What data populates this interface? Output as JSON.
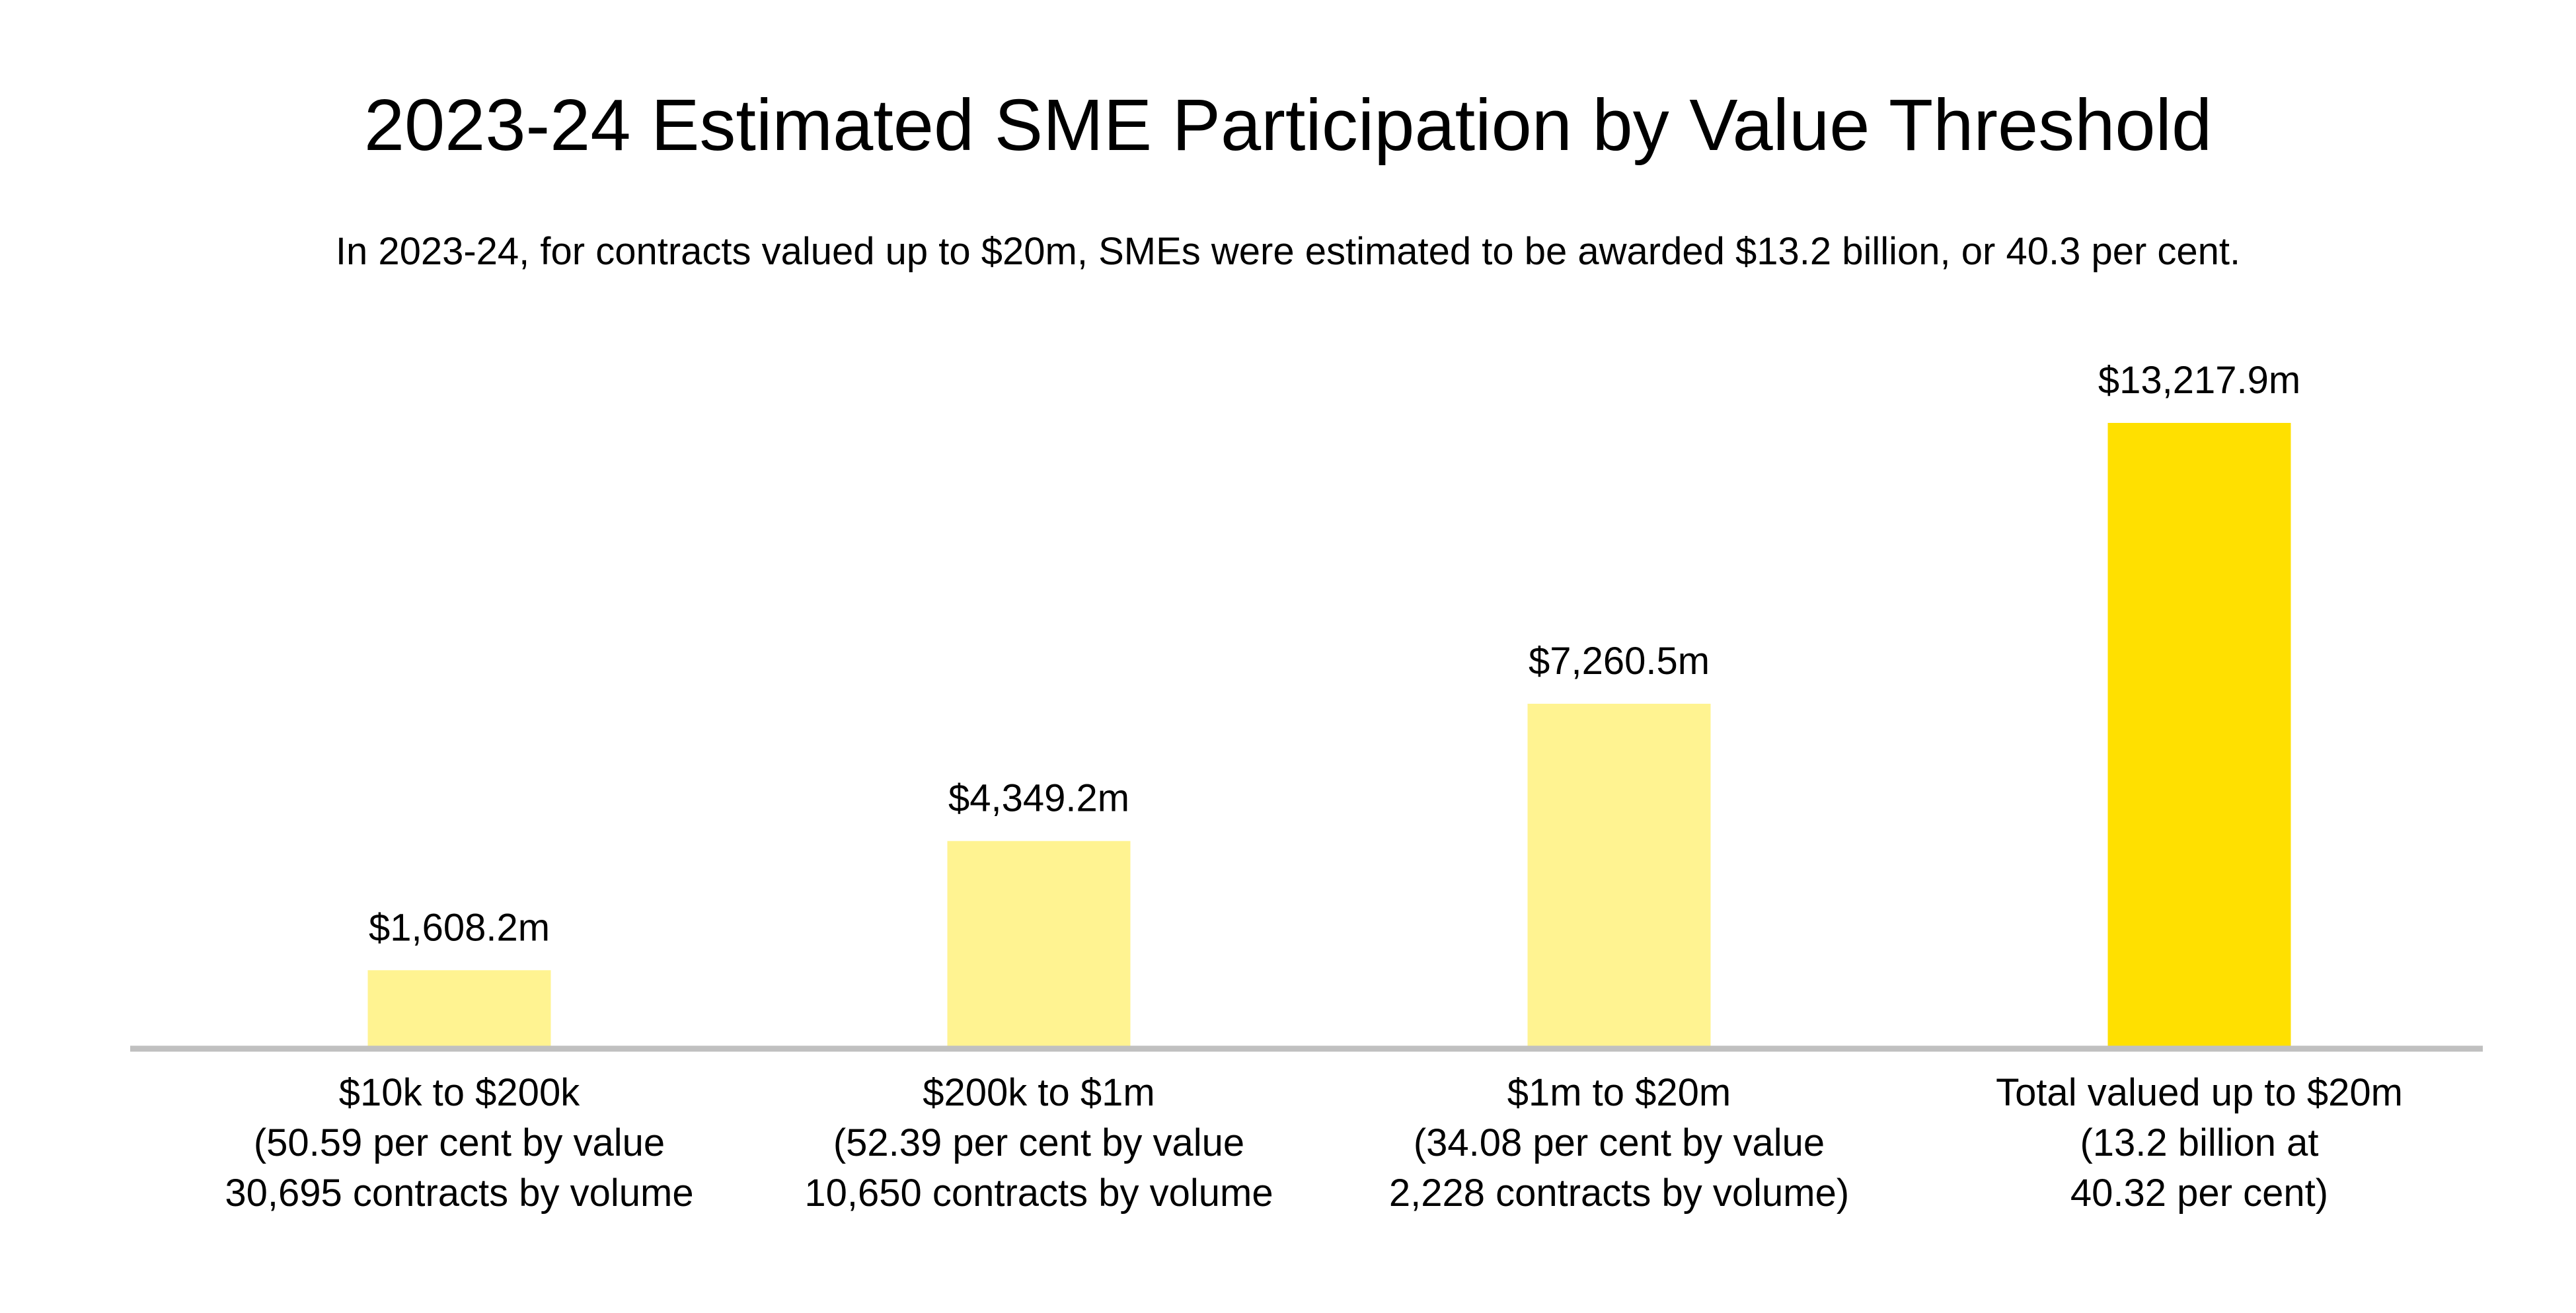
{
  "colors": {
    "bar_light": "#FFF391",
    "bar_highlight": "#FFE000",
    "axis": "#C0C0C0"
  },
  "chart_data": {
    "type": "bar",
    "title": "2023-24 Estimated SME Participation by Value Threshold",
    "subtitle": "In 2023-24, for contracts valued up to $20m, SMEs were estimated to be awarded $13.2 billion, or 40.3 per cent.",
    "xlabel": "",
    "ylabel": "",
    "ylim": [
      0,
      13217.9
    ],
    "grid": false,
    "legend": "none",
    "categories": [
      [
        "$10k to $200k",
        "(50.59 per cent by value",
        "30,695 contracts by volume"
      ],
      [
        "$200k to $1m",
        "(52.39 per cent by value",
        "10,650 contracts by volume"
      ],
      [
        "$1m to $20m",
        "(34.08 per cent by value",
        "2,228 contracts by volume)"
      ],
      [
        "Total valued up to $20m",
        "(13.2 billion at",
        "40.32 per cent)"
      ]
    ],
    "values": [
      1608.2,
      4349.2,
      7260.5,
      13217.9
    ],
    "value_labels": [
      "$1,608.2m",
      "$4,349.2m",
      "$7,260.5m",
      "$13,217.9m"
    ],
    "highlight_index": 3
  }
}
